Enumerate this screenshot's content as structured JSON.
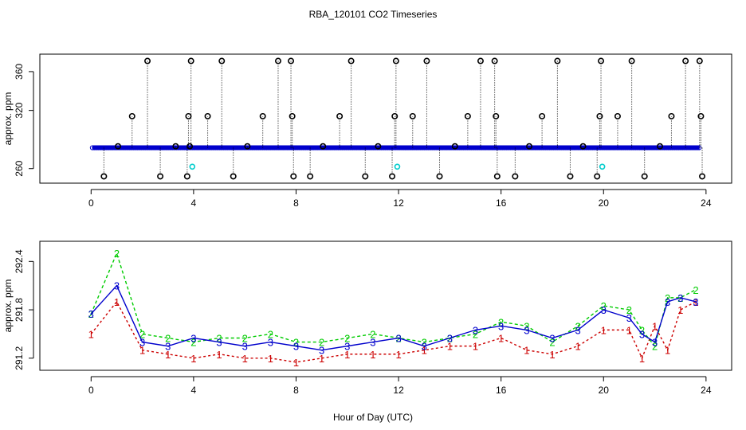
{
  "title": "RBA_120101  CO2 Timeseries",
  "xlabel": "Hour of Day (UTC)",
  "colors": {
    "series1": "#cc0000",
    "series2": "#00cc00",
    "series3": "#0000cc",
    "black": "#000000",
    "cyan": "#00cccc",
    "axis": "#000000"
  },
  "chart_data": [
    {
      "type": "scatter",
      "name": "top",
      "ylabel": "approx. ppm",
      "xlim": [
        -2,
        25
      ],
      "ylim": [
        245,
        378
      ],
      "xticks": [
        0,
        4,
        8,
        12,
        16,
        20,
        24
      ],
      "xtick_labels": [
        "0",
        "4",
        "8",
        "12",
        "16",
        "20",
        "24"
      ],
      "yticks": [
        260,
        320,
        360
      ],
      "ytick_labels": [
        "260",
        "320",
        "360"
      ],
      "baseline_ppm": 281.5,
      "series": [
        {
          "name": "continuous (blue)",
          "x_start": 0.05,
          "x_end": 23.75,
          "y": 281.5
        },
        {
          "name": "outliers (black circles)",
          "x": [
            0.5,
            1.05,
            1.6,
            2.2,
            2.7,
            3.3,
            3.75,
            3.8,
            3.85,
            3.9,
            4.55,
            5.1,
            5.55,
            6.1,
            6.7,
            7.3,
            7.8,
            7.85,
            7.9,
            8.55,
            9.05,
            9.7,
            10.15,
            10.7,
            11.2,
            11.75,
            11.85,
            11.9,
            12.55,
            13.1,
            13.6,
            14.2,
            14.7,
            15.2,
            15.75,
            15.8,
            15.85,
            16.55,
            17.1,
            17.6,
            18.2,
            18.7,
            19.2,
            19.75,
            19.85,
            19.9,
            20.55,
            21.1,
            21.6,
            22.2,
            22.65,
            23.2,
            23.75,
            23.8,
            23.85
          ],
          "y": [
            252,
            283,
            314,
            371,
            252,
            283,
            252,
            314,
            283,
            371,
            314,
            371,
            252,
            283,
            314,
            371,
            371,
            314,
            252,
            252,
            283,
            314,
            371,
            252,
            283,
            252,
            314,
            371,
            314,
            371,
            252,
            283,
            314,
            371,
            371,
            314,
            252,
            252,
            283,
            314,
            371,
            252,
            283,
            252,
            314,
            371,
            314,
            371,
            252,
            283,
            314,
            371,
            371,
            314,
            252
          ]
        },
        {
          "name": "cyan markers",
          "x": [
            3.95,
            11.95,
            19.95
          ],
          "y": [
            262,
            262,
            262
          ]
        }
      ]
    },
    {
      "type": "line",
      "name": "bottom",
      "ylabel": "approx. ppm",
      "xlim": [
        -2,
        25
      ],
      "ylim": [
        291.05,
        292.65
      ],
      "xticks": [
        0,
        4,
        8,
        12,
        16,
        20,
        24
      ],
      "xtick_labels": [
        "0",
        "4",
        "8",
        "12",
        "16",
        "20",
        "24"
      ],
      "yticks": [
        291.2,
        291.8,
        292.4
      ],
      "ytick_labels": [
        "291.2",
        "291.8",
        "292.4"
      ],
      "series": [
        {
          "name": "1",
          "x": [
            0,
            1,
            2,
            3,
            4,
            5,
            6,
            7,
            8,
            9,
            10,
            11,
            12,
            13,
            14,
            15,
            16,
            17,
            18,
            19,
            20,
            21,
            21.5,
            22,
            22.5,
            23,
            23.6
          ],
          "y": [
            291.5,
            291.9,
            291.3,
            291.25,
            291.2,
            291.25,
            291.2,
            291.2,
            291.15,
            291.2,
            291.25,
            291.25,
            291.25,
            291.3,
            291.35,
            291.35,
            291.45,
            291.3,
            291.25,
            291.35,
            291.55,
            291.55,
            291.2,
            291.6,
            291.3,
            291.8,
            291.9
          ]
        },
        {
          "name": "2",
          "x": [
            0,
            1,
            2,
            3,
            4,
            5,
            6,
            7,
            8,
            9,
            10,
            11,
            12,
            13,
            14,
            15,
            16,
            17,
            18,
            19,
            20,
            21,
            21.5,
            22,
            22.5,
            23,
            23.6
          ],
          "y": [
            291.75,
            292.5,
            291.5,
            291.45,
            291.4,
            291.45,
            291.45,
            291.5,
            291.4,
            291.4,
            291.45,
            291.5,
            291.45,
            291.4,
            291.45,
            291.5,
            291.65,
            291.6,
            291.4,
            291.6,
            291.85,
            291.8,
            291.55,
            291.35,
            291.95,
            291.95,
            292.05
          ]
        },
        {
          "name": "3",
          "x": [
            0,
            1,
            2,
            3,
            4,
            5,
            6,
            7,
            8,
            9,
            10,
            11,
            12,
            13,
            14,
            15,
            16,
            17,
            18,
            19,
            20,
            21,
            21.5,
            22,
            22.5,
            23,
            23.6
          ],
          "y": [
            291.75,
            292.1,
            291.4,
            291.35,
            291.45,
            291.4,
            291.35,
            291.4,
            291.35,
            291.3,
            291.35,
            291.4,
            291.45,
            291.35,
            291.45,
            291.55,
            291.6,
            291.55,
            291.45,
            291.55,
            291.8,
            291.7,
            291.5,
            291.4,
            291.9,
            291.95,
            291.9
          ]
        }
      ]
    }
  ]
}
